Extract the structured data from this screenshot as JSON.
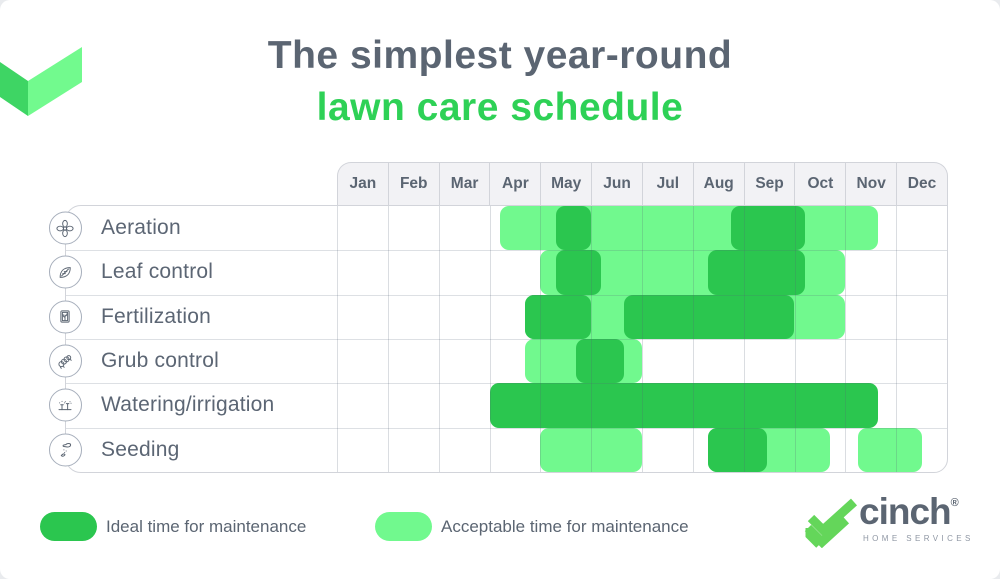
{
  "title": {
    "line1": "The simplest year-round",
    "line2": "lawn care schedule"
  },
  "colors": {
    "ideal_green": "#2bc64f",
    "acceptable_green": "#71f98e",
    "title_gray": "#5b6572",
    "title_green": "#2ed156",
    "header_bg": "#f2f2f5",
    "grid_border": "#d2d4da",
    "corner_check_light": "#72fa8e",
    "corner_check_dark": "#3ed564",
    "brand_check_green": "#64d65a"
  },
  "legend": [
    {
      "key": "ideal",
      "label": "Ideal time for maintenance"
    },
    {
      "key": "acceptable",
      "label": "Acceptable time for maintenance"
    }
  ],
  "brand": {
    "name": "cinch",
    "registered": "®",
    "tagline": "HOME SERVICES"
  },
  "chart_data": {
    "type": "gantt",
    "title": "The simplest year-round lawn care schedule",
    "months": [
      "Jan",
      "Feb",
      "Mar",
      "Apr",
      "May",
      "Jun",
      "Jul",
      "Aug",
      "Sep",
      "Oct",
      "Nov",
      "Dec"
    ],
    "axis_note": "span start/end in month units: 0 = Jan 1, 12 = Dec 31",
    "legend": [
      {
        "key": "ideal",
        "label": "Ideal time for maintenance",
        "color": "#2bc64f"
      },
      {
        "key": "acceptable",
        "label": "Acceptable time for maintenance",
        "color": "#71f98e"
      }
    ],
    "rows": [
      {
        "task": "Aeration",
        "icon": "fan-icon",
        "spans": [
          {
            "type": "acceptable",
            "start": 3.2,
            "end": 10.65
          },
          {
            "type": "ideal",
            "start": 4.3,
            "end": 5.0
          },
          {
            "type": "ideal",
            "start": 7.75,
            "end": 9.2
          }
        ]
      },
      {
        "task": "Leaf control",
        "icon": "leaf-icon",
        "spans": [
          {
            "type": "acceptable",
            "start": 4.0,
            "end": 10.0
          },
          {
            "type": "ideal",
            "start": 4.3,
            "end": 5.2
          },
          {
            "type": "ideal",
            "start": 7.3,
            "end": 9.2
          }
        ]
      },
      {
        "task": "Fertilization",
        "icon": "fertilizer-bag-icon",
        "spans": [
          {
            "type": "acceptable",
            "start": 3.7,
            "end": 10.0
          },
          {
            "type": "ideal",
            "start": 3.7,
            "end": 5.0
          },
          {
            "type": "ideal",
            "start": 5.65,
            "end": 9.0
          }
        ]
      },
      {
        "task": "Grub control",
        "icon": "grub-icon",
        "spans": [
          {
            "type": "acceptable",
            "start": 3.7,
            "end": 6.0
          },
          {
            "type": "ideal",
            "start": 4.7,
            "end": 5.65
          }
        ]
      },
      {
        "task": "Watering/irrigation",
        "icon": "sprinkler-icon",
        "spans": [
          {
            "type": "ideal",
            "start": 3.0,
            "end": 10.65
          }
        ]
      },
      {
        "task": "Seeding",
        "icon": "seeding-hand-icon",
        "spans": [
          {
            "type": "acceptable",
            "start": 4.0,
            "end": 6.0
          },
          {
            "type": "acceptable",
            "start": 7.3,
            "end": 9.7
          },
          {
            "type": "ideal",
            "start": 7.3,
            "end": 8.45
          },
          {
            "type": "acceptable",
            "start": 10.25,
            "end": 11.5
          }
        ]
      }
    ]
  }
}
